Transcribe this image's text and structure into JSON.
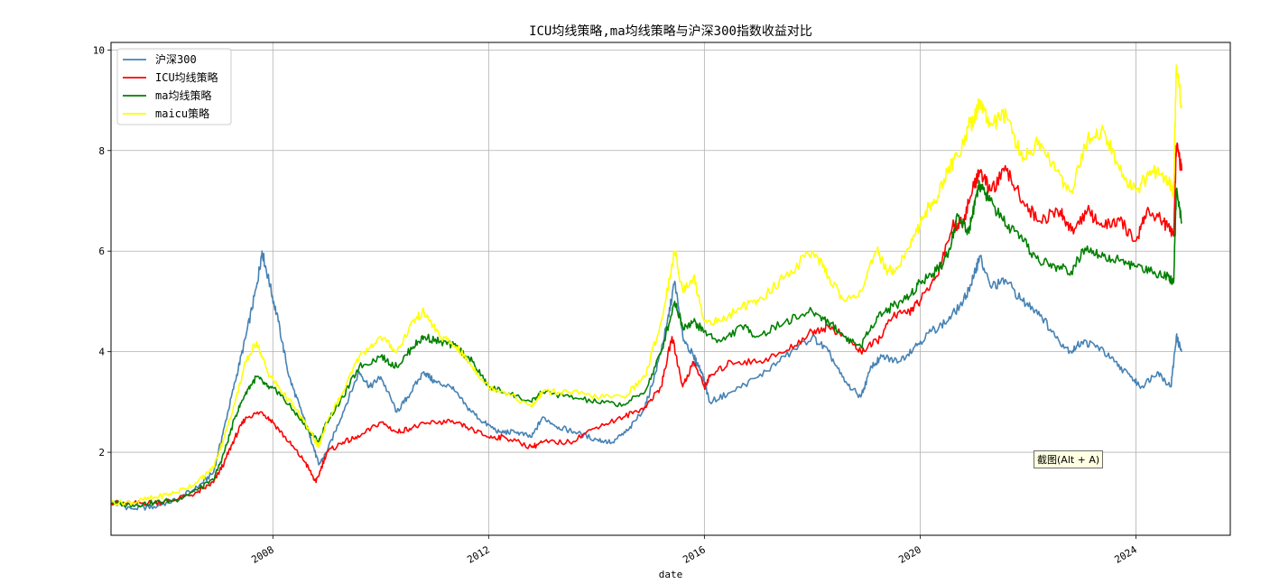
{
  "chart_data": {
    "type": "line",
    "title": "ICU均线策略,ma均线策略与沪深300指数收益对比",
    "xlabel": "date",
    "ylabel": "",
    "xlim": [
      2005.0,
      2025.75
    ],
    "ylim": [
      0.35,
      10.15
    ],
    "x_ticks": [
      2008,
      2012,
      2016,
      2020,
      2024
    ],
    "x_tick_labels": [
      "2008",
      "2012",
      "2016",
      "2020",
      "2024"
    ],
    "y_ticks": [
      2,
      4,
      6,
      8,
      10
    ],
    "y_tick_labels": [
      "2",
      "4",
      "6",
      "8",
      "10"
    ],
    "grid": true,
    "legend_position": "upper left",
    "series": [
      {
        "name": "沪深300",
        "color": "#4682b4",
        "x": [
          2005.0,
          2005.4,
          2005.8,
          2006.2,
          2006.6,
          2006.9,
          2007.1,
          2007.3,
          2007.5,
          2007.7,
          2007.8,
          2007.95,
          2008.1,
          2008.3,
          2008.5,
          2008.7,
          2008.85,
          2009.0,
          2009.3,
          2009.6,
          2009.8,
          2010.0,
          2010.3,
          2010.5,
          2010.8,
          2011.0,
          2011.3,
          2011.6,
          2011.9,
          2012.2,
          2012.5,
          2012.8,
          2013.0,
          2013.3,
          2013.6,
          2014.0,
          2014.3,
          2014.6,
          2014.9,
          2015.1,
          2015.3,
          2015.45,
          2015.6,
          2015.8,
          2015.95,
          2016.1,
          2016.5,
          2017.0,
          2017.5,
          2018.0,
          2018.3,
          2018.6,
          2018.9,
          2019.1,
          2019.3,
          2019.6,
          2019.9,
          2020.2,
          2020.5,
          2020.8,
          2021.0,
          2021.1,
          2021.3,
          2021.6,
          2021.9,
          2022.2,
          2022.5,
          2022.8,
          2023.0,
          2023.3,
          2023.6,
          2023.9,
          2024.1,
          2024.4,
          2024.65,
          2024.75,
          2024.85
        ],
        "y": [
          1.0,
          0.88,
          0.92,
          1.05,
          1.3,
          1.6,
          2.5,
          3.4,
          4.3,
          5.3,
          6.0,
          5.3,
          4.6,
          3.5,
          2.9,
          2.3,
          1.75,
          2.0,
          2.8,
          3.6,
          3.3,
          3.5,
          2.8,
          3.1,
          3.6,
          3.4,
          3.3,
          2.9,
          2.6,
          2.4,
          2.4,
          2.3,
          2.7,
          2.5,
          2.4,
          2.25,
          2.2,
          2.45,
          2.9,
          3.6,
          4.5,
          5.4,
          4.3,
          3.9,
          3.6,
          3.0,
          3.2,
          3.5,
          3.9,
          4.3,
          4.0,
          3.4,
          3.1,
          3.7,
          3.9,
          3.8,
          4.1,
          4.4,
          4.6,
          5.0,
          5.5,
          5.9,
          5.3,
          5.4,
          5.0,
          4.8,
          4.3,
          4.0,
          4.2,
          4.1,
          3.8,
          3.5,
          3.3,
          3.6,
          3.3,
          4.3,
          4.0
        ]
      },
      {
        "name": "ICU均线策略",
        "color": "#ff0000",
        "x": [
          2005.0,
          2005.4,
          2005.8,
          2006.2,
          2006.6,
          2006.9,
          2007.1,
          2007.3,
          2007.5,
          2007.8,
          2008.0,
          2008.3,
          2008.6,
          2008.8,
          2009.0,
          2009.3,
          2009.6,
          2010.0,
          2010.3,
          2010.6,
          2011.0,
          2011.3,
          2011.6,
          2012.0,
          2012.3,
          2012.8,
          2013.0,
          2013.5,
          2014.0,
          2014.5,
          2014.9,
          2015.2,
          2015.4,
          2015.6,
          2015.8,
          2016.0,
          2016.1,
          2016.5,
          2017.0,
          2017.5,
          2018.0,
          2018.3,
          2018.6,
          2018.9,
          2019.2,
          2019.5,
          2019.8,
          2020.0,
          2020.3,
          2020.6,
          2020.8,
          2021.0,
          2021.1,
          2021.3,
          2021.6,
          2021.9,
          2022.2,
          2022.6,
          2022.8,
          2023.1,
          2023.4,
          2023.7,
          2024.0,
          2024.2,
          2024.5,
          2024.7,
          2024.75,
          2024.85
        ],
        "y": [
          1.0,
          0.98,
          1.0,
          1.05,
          1.2,
          1.4,
          1.8,
          2.3,
          2.7,
          2.8,
          2.6,
          2.2,
          1.8,
          1.4,
          2.0,
          2.2,
          2.3,
          2.6,
          2.4,
          2.5,
          2.6,
          2.6,
          2.5,
          2.3,
          2.3,
          2.1,
          2.2,
          2.2,
          2.5,
          2.7,
          2.9,
          3.3,
          4.3,
          3.3,
          3.8,
          3.3,
          3.5,
          3.8,
          3.8,
          4.0,
          4.4,
          4.5,
          4.3,
          4.0,
          4.2,
          4.7,
          4.8,
          5.0,
          5.5,
          6.5,
          6.6,
          7.3,
          7.6,
          7.2,
          7.6,
          7.0,
          6.6,
          6.8,
          6.4,
          6.8,
          6.5,
          6.6,
          6.2,
          6.8,
          6.6,
          6.3,
          8.1,
          7.6
        ]
      },
      {
        "name": "ma均线策略",
        "color": "#008000",
        "x": [
          2005.0,
          2005.4,
          2005.8,
          2006.2,
          2006.6,
          2006.9,
          2007.1,
          2007.3,
          2007.5,
          2007.7,
          2007.9,
          2008.1,
          2008.4,
          2008.7,
          2008.85,
          2009.0,
          2009.3,
          2009.6,
          2010.0,
          2010.3,
          2010.6,
          2010.8,
          2011.1,
          2011.4,
          2011.7,
          2012.0,
          2012.3,
          2012.8,
          2013.0,
          2013.5,
          2014.0,
          2014.5,
          2014.9,
          2015.2,
          2015.45,
          2015.6,
          2015.8,
          2016.0,
          2016.3,
          2016.7,
          2017.0,
          2017.5,
          2018.0,
          2018.3,
          2018.6,
          2018.9,
          2019.2,
          2019.5,
          2019.8,
          2020.0,
          2020.3,
          2020.5,
          2020.7,
          2020.9,
          2021.0,
          2021.1,
          2021.3,
          2021.6,
          2021.9,
          2022.2,
          2022.5,
          2022.8,
          2023.1,
          2023.4,
          2023.7,
          2024.0,
          2024.3,
          2024.6,
          2024.7,
          2024.75,
          2024.85
        ],
        "y": [
          1.0,
          0.95,
          1.0,
          1.05,
          1.25,
          1.45,
          2.0,
          2.7,
          3.2,
          3.5,
          3.3,
          3.2,
          2.8,
          2.4,
          2.2,
          2.6,
          3.1,
          3.7,
          3.9,
          3.7,
          4.1,
          4.3,
          4.2,
          4.1,
          3.8,
          3.3,
          3.2,
          3.0,
          3.2,
          3.1,
          3.0,
          2.95,
          3.2,
          4.0,
          5.0,
          4.5,
          4.6,
          4.4,
          4.2,
          4.5,
          4.3,
          4.6,
          4.8,
          4.6,
          4.3,
          4.1,
          4.7,
          4.9,
          5.1,
          5.4,
          5.6,
          5.9,
          6.7,
          6.4,
          6.9,
          7.3,
          7.0,
          6.5,
          6.2,
          5.8,
          5.7,
          5.6,
          6.1,
          5.9,
          5.8,
          5.7,
          5.6,
          5.5,
          5.4,
          7.2,
          6.55
        ]
      },
      {
        "name": "maicu策略",
        "color": "#ffff00",
        "x": [
          2005.0,
          2005.4,
          2005.8,
          2006.2,
          2006.6,
          2006.9,
          2007.1,
          2007.3,
          2007.5,
          2007.7,
          2007.9,
          2008.1,
          2008.4,
          2008.7,
          2008.85,
          2009.0,
          2009.3,
          2009.6,
          2010.0,
          2010.3,
          2010.6,
          2010.8,
          2011.1,
          2011.4,
          2011.7,
          2012.0,
          2012.3,
          2012.8,
          2013.0,
          2013.5,
          2014.0,
          2014.5,
          2014.9,
          2015.2,
          2015.45,
          2015.6,
          2015.8,
          2016.0,
          2016.3,
          2016.7,
          2017.0,
          2017.5,
          2018.0,
          2018.3,
          2018.6,
          2018.9,
          2019.2,
          2019.4,
          2019.6,
          2019.9,
          2020.1,
          2020.3,
          2020.5,
          2020.7,
          2020.9,
          2021.0,
          2021.1,
          2021.3,
          2021.6,
          2021.9,
          2022.2,
          2022.5,
          2022.8,
          2023.1,
          2023.4,
          2023.7,
          2024.0,
          2024.3,
          2024.6,
          2024.7,
          2024.75,
          2024.85
        ],
        "y": [
          1.0,
          1.0,
          1.1,
          1.2,
          1.4,
          1.7,
          2.3,
          3.0,
          3.8,
          4.2,
          3.6,
          3.3,
          2.9,
          2.4,
          2.1,
          2.6,
          3.2,
          3.9,
          4.3,
          4.0,
          4.6,
          4.8,
          4.3,
          4.1,
          3.7,
          3.3,
          3.2,
          2.9,
          3.2,
          3.2,
          3.1,
          3.1,
          3.5,
          4.6,
          6.0,
          5.2,
          5.5,
          4.6,
          4.6,
          4.9,
          5.0,
          5.5,
          6.0,
          5.5,
          5.0,
          5.2,
          6.0,
          5.6,
          5.7,
          6.3,
          6.8,
          7.0,
          7.6,
          7.9,
          8.5,
          8.6,
          9.0,
          8.5,
          8.7,
          7.8,
          8.2,
          7.6,
          7.2,
          8.2,
          8.4,
          7.6,
          7.2,
          7.6,
          7.4,
          7.2,
          9.7,
          8.9
        ]
      }
    ]
  },
  "overlay": {
    "tooltip_text": "截图(Alt + A)"
  }
}
